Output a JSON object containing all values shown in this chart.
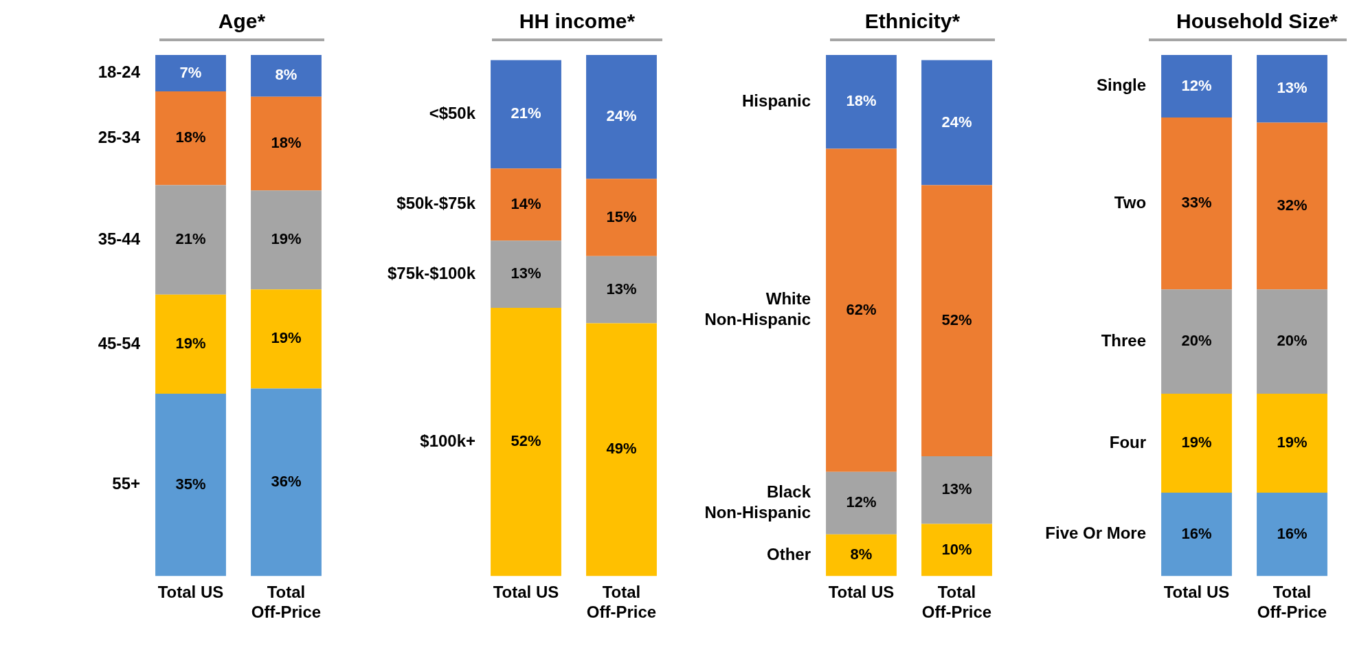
{
  "chart_data": [
    {
      "type": "bar",
      "title": "Age*",
      "stacked": true,
      "legend": false,
      "categories": [
        "Total US",
        "Total Off-Price"
      ],
      "series": [
        {
          "name": "55+",
          "color": "#5b9bd5",
          "values": [
            35,
            36
          ],
          "value_labels": [
            "35%",
            "36%"
          ]
        },
        {
          "name": "45-54",
          "color": "#ffc000",
          "values": [
            19,
            19
          ],
          "value_labels": [
            "19%",
            "19%"
          ]
        },
        {
          "name": "35-44",
          "color": "#a5a5a5",
          "values": [
            21,
            19
          ],
          "value_labels": [
            "21%",
            "19%"
          ]
        },
        {
          "name": "25-34",
          "color": "#ed7d31",
          "values": [
            18,
            18
          ],
          "value_labels": [
            "18%",
            "18%"
          ]
        },
        {
          "name": "18-24",
          "color": "#4472c4",
          "values": [
            7,
            8
          ],
          "value_labels": [
            "7%",
            "8%"
          ]
        }
      ]
    },
    {
      "type": "bar",
      "title": "HH income*",
      "stacked": true,
      "legend": false,
      "categories": [
        "Total US",
        "Total Off-Price"
      ],
      "series": [
        {
          "name": "$100k+",
          "color": "#ffc000",
          "values": [
            52,
            49
          ],
          "value_labels": [
            "52%",
            "49%"
          ]
        },
        {
          "name": "$75k-$100k",
          "color": "#a5a5a5",
          "values": [
            13,
            13
          ],
          "value_labels": [
            "13%",
            "13%"
          ]
        },
        {
          "name": "$50k-$75k",
          "color": "#ed7d31",
          "values": [
            14,
            15
          ],
          "value_labels": [
            "14%",
            "15%"
          ]
        },
        {
          "name": "<$50k",
          "color": "#4472c4",
          "values": [
            21,
            24
          ],
          "value_labels": [
            "21%",
            "24%"
          ]
        }
      ]
    },
    {
      "type": "bar",
      "title": "Ethnicity*",
      "stacked": true,
      "legend": false,
      "categories": [
        "Total US",
        "Total Off-Price"
      ],
      "series": [
        {
          "name": "Other",
          "color": "#ffc000",
          "values": [
            8,
            10
          ],
          "value_labels": [
            "8%",
            "10%"
          ]
        },
        {
          "name": "Black Non-Hispanic",
          "color": "#a5a5a5",
          "values": [
            12,
            13
          ],
          "value_labels": [
            "12%",
            "13%"
          ]
        },
        {
          "name": "White Non-Hispanic",
          "color": "#ed7d31",
          "values": [
            62,
            52
          ],
          "value_labels": [
            "62%",
            "52%"
          ]
        },
        {
          "name": "Hispanic",
          "color": "#4472c4",
          "values": [
            18,
            24
          ],
          "value_labels": [
            "18%",
            "24%"
          ]
        }
      ]
    },
    {
      "type": "bar",
      "title": "Household Size*",
      "stacked": true,
      "legend": false,
      "categories": [
        "Total US",
        "Total Off-Price"
      ],
      "series": [
        {
          "name": "Five Or More",
          "color": "#5b9bd5",
          "values": [
            16,
            16
          ],
          "value_labels": [
            "16%",
            "16%"
          ]
        },
        {
          "name": "Four",
          "color": "#ffc000",
          "values": [
            19,
            19
          ],
          "value_labels": [
            "19%",
            "19%"
          ]
        },
        {
          "name": "Three",
          "color": "#a5a5a5",
          "values": [
            20,
            20
          ],
          "value_labels": [
            "20%",
            "20%"
          ]
        },
        {
          "name": "Two",
          "color": "#ed7d31",
          "values": [
            33,
            32
          ],
          "value_labels": [
            "33%",
            "32%"
          ]
        },
        {
          "name": "Single",
          "color": "#4472c4",
          "values": [
            12,
            13
          ],
          "value_labels": [
            "12%",
            "13%"
          ]
        }
      ]
    }
  ]
}
